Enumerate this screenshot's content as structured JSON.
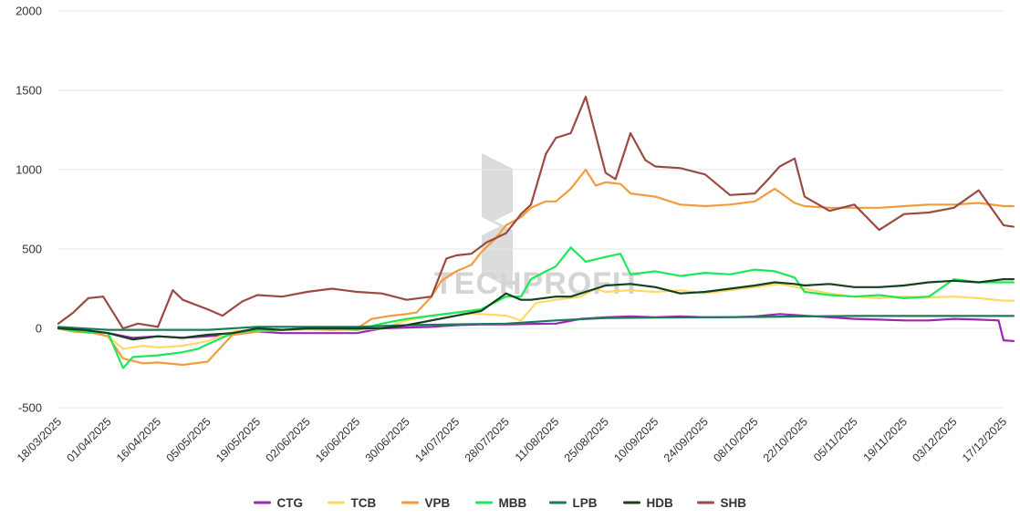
{
  "chart_data": {
    "type": "line",
    "title": "",
    "xlabel": "",
    "ylabel": "",
    "ylim": [
      -500,
      2000
    ],
    "yticks": [
      -500,
      0,
      500,
      1000,
      1500,
      2000
    ],
    "grid": true,
    "legend_position": "bottom-center",
    "watermark": "TECHPROFIT",
    "x": [
      "18/03/2025",
      "01/04/2025",
      "16/04/2025",
      "05/05/2025",
      "19/05/2025",
      "02/06/2025",
      "16/06/2025",
      "30/06/2025",
      "14/07/2025",
      "28/07/2025",
      "11/08/2025",
      "25/08/2025",
      "10/09/2025",
      "24/09/2025",
      "08/10/2025",
      "22/10/2025",
      "05/11/2025",
      "19/11/2025",
      "03/12/2025",
      "17/12/2025"
    ],
    "series": [
      {
        "name": "CTG",
        "color": "#9b27af",
        "values": [
          [
            0,
            0
          ],
          [
            0.5,
            -10
          ],
          [
            1,
            -30
          ],
          [
            1.5,
            -60
          ],
          [
            2,
            -50
          ],
          [
            2.5,
            -60
          ],
          [
            3,
            -50
          ],
          [
            3.5,
            -40
          ],
          [
            4,
            -20
          ],
          [
            4.5,
            -30
          ],
          [
            5,
            -30
          ],
          [
            5.5,
            -30
          ],
          [
            6,
            -30
          ],
          [
            6.5,
            0
          ],
          [
            7,
            5
          ],
          [
            7.5,
            10
          ],
          [
            8,
            20
          ],
          [
            8.5,
            25
          ],
          [
            9,
            25
          ],
          [
            9.5,
            28
          ],
          [
            10,
            30
          ],
          [
            10.5,
            60
          ],
          [
            11,
            70
          ],
          [
            11.5,
            75
          ],
          [
            12,
            70
          ],
          [
            12.5,
            75
          ],
          [
            13,
            70
          ],
          [
            13.5,
            70
          ],
          [
            14,
            75
          ],
          [
            14.5,
            90
          ],
          [
            15,
            80
          ],
          [
            15.5,
            70
          ],
          [
            16,
            60
          ],
          [
            16.5,
            55
          ],
          [
            17,
            50
          ],
          [
            17.5,
            50
          ],
          [
            18,
            60
          ],
          [
            18.5,
            55
          ],
          [
            18.9,
            50
          ],
          [
            19,
            -75
          ],
          [
            19.2,
            -80
          ]
        ]
      },
      {
        "name": "TCB",
        "color": "#ffd966",
        "values": [
          [
            0,
            0
          ],
          [
            0.5,
            -10
          ],
          [
            1,
            -50
          ],
          [
            1.3,
            -130
          ],
          [
            1.7,
            -110
          ],
          [
            2,
            -120
          ],
          [
            2.5,
            -110
          ],
          [
            3,
            -80
          ],
          [
            3.5,
            -20
          ],
          [
            4,
            -10
          ],
          [
            4.5,
            -10
          ],
          [
            5,
            -5
          ],
          [
            5.5,
            -10
          ],
          [
            6,
            -10
          ],
          [
            6.5,
            0
          ],
          [
            7,
            50
          ],
          [
            7.5,
            80
          ],
          [
            8,
            100
          ],
          [
            8.5,
            90
          ],
          [
            9,
            80
          ],
          [
            9.3,
            50
          ],
          [
            9.6,
            160
          ],
          [
            10,
            180
          ],
          [
            10.5,
            200
          ],
          [
            10.8,
            250
          ],
          [
            11,
            230
          ],
          [
            11.5,
            240
          ],
          [
            12,
            230
          ],
          [
            12.5,
            240
          ],
          [
            13,
            220
          ],
          [
            13.5,
            240
          ],
          [
            14,
            260
          ],
          [
            14.5,
            280
          ],
          [
            15,
            250
          ],
          [
            15.5,
            220
          ],
          [
            16,
            200
          ],
          [
            16.5,
            190
          ],
          [
            17,
            200
          ],
          [
            17.5,
            195
          ],
          [
            18,
            200
          ],
          [
            18.5,
            190
          ],
          [
            19,
            175
          ],
          [
            19.2,
            175
          ]
        ]
      },
      {
        "name": "VPB",
        "color": "#f39c3c",
        "values": [
          [
            0,
            0
          ],
          [
            0.3,
            -20
          ],
          [
            0.7,
            -30
          ],
          [
            1,
            -50
          ],
          [
            1.3,
            -190
          ],
          [
            1.7,
            -220
          ],
          [
            2,
            -215
          ],
          [
            2.5,
            -230
          ],
          [
            3,
            -210
          ],
          [
            3.5,
            -40
          ],
          [
            4,
            -20
          ],
          [
            4.5,
            -10
          ],
          [
            5,
            -5
          ],
          [
            5.5,
            -10
          ],
          [
            6,
            0
          ],
          [
            6.3,
            60
          ],
          [
            6.7,
            80
          ],
          [
            7,
            90
          ],
          [
            7.2,
            100
          ],
          [
            7.5,
            200
          ],
          [
            7.7,
            300
          ],
          [
            8,
            360
          ],
          [
            8.3,
            400
          ],
          [
            8.5,
            480
          ],
          [
            8.8,
            570
          ],
          [
            9,
            650
          ],
          [
            9.3,
            700
          ],
          [
            9.5,
            760
          ],
          [
            9.8,
            800
          ],
          [
            10,
            800
          ],
          [
            10.3,
            880
          ],
          [
            10.6,
            1000
          ],
          [
            10.8,
            900
          ],
          [
            11,
            920
          ],
          [
            11.3,
            910
          ],
          [
            11.5,
            850
          ],
          [
            12,
            830
          ],
          [
            12.5,
            780
          ],
          [
            13,
            770
          ],
          [
            13.5,
            780
          ],
          [
            14,
            800
          ],
          [
            14.4,
            880
          ],
          [
            14.8,
            790
          ],
          [
            15,
            770
          ],
          [
            15.5,
            760
          ],
          [
            16,
            760
          ],
          [
            16.5,
            760
          ],
          [
            17,
            770
          ],
          [
            17.5,
            780
          ],
          [
            18,
            780
          ],
          [
            18.5,
            790
          ],
          [
            19,
            770
          ],
          [
            19.2,
            770
          ]
        ]
      },
      {
        "name": "MBB",
        "color": "#1ee85a",
        "values": [
          [
            0,
            0
          ],
          [
            0.5,
            -20
          ],
          [
            1,
            -30
          ],
          [
            1.3,
            -250
          ],
          [
            1.5,
            -180
          ],
          [
            2,
            -170
          ],
          [
            2.5,
            -150
          ],
          [
            2.8,
            -130
          ],
          [
            3,
            -100
          ],
          [
            3.5,
            -30
          ],
          [
            4,
            -10
          ],
          [
            4.5,
            -10
          ],
          [
            5,
            0
          ],
          [
            5.5,
            0
          ],
          [
            6,
            -10
          ],
          [
            6.5,
            30
          ],
          [
            7,
            60
          ],
          [
            7.5,
            80
          ],
          [
            8,
            100
          ],
          [
            8.5,
            120
          ],
          [
            9,
            200
          ],
          [
            9.3,
            200
          ],
          [
            9.5,
            310
          ],
          [
            9.8,
            360
          ],
          [
            10,
            390
          ],
          [
            10.3,
            510
          ],
          [
            10.6,
            420
          ],
          [
            11,
            450
          ],
          [
            11.3,
            470
          ],
          [
            11.5,
            340
          ],
          [
            12,
            360
          ],
          [
            12.5,
            330
          ],
          [
            13,
            350
          ],
          [
            13.5,
            340
          ],
          [
            14,
            370
          ],
          [
            14.4,
            360
          ],
          [
            14.8,
            320
          ],
          [
            15,
            230
          ],
          [
            15.5,
            210
          ],
          [
            16,
            200
          ],
          [
            16.5,
            210
          ],
          [
            17,
            190
          ],
          [
            17.5,
            200
          ],
          [
            18,
            310
          ],
          [
            18.5,
            290
          ],
          [
            19,
            290
          ],
          [
            19.2,
            290
          ]
        ]
      },
      {
        "name": "LPB",
        "color": "#1a7a5e",
        "values": [
          [
            0,
            10
          ],
          [
            1,
            -10
          ],
          [
            2,
            -10
          ],
          [
            3,
            -10
          ],
          [
            4,
            10
          ],
          [
            5,
            10
          ],
          [
            6,
            10
          ],
          [
            7,
            20
          ],
          [
            8,
            25
          ],
          [
            9,
            30
          ],
          [
            10,
            50
          ],
          [
            11,
            65
          ],
          [
            12,
            68
          ],
          [
            13,
            70
          ],
          [
            14,
            72
          ],
          [
            15,
            75
          ],
          [
            16,
            78
          ],
          [
            17,
            78
          ],
          [
            18,
            78
          ],
          [
            19,
            78
          ],
          [
            19.2,
            78
          ]
        ]
      },
      {
        "name": "HDB",
        "color": "#13401f",
        "values": [
          [
            0,
            0
          ],
          [
            0.5,
            -10
          ],
          [
            1,
            -30
          ],
          [
            1.5,
            -70
          ],
          [
            2,
            -50
          ],
          [
            2.5,
            -60
          ],
          [
            3,
            -40
          ],
          [
            3.5,
            -30
          ],
          [
            4,
            0
          ],
          [
            4.5,
            -10
          ],
          [
            5,
            0
          ],
          [
            5.5,
            0
          ],
          [
            6,
            0
          ],
          [
            6.5,
            0
          ],
          [
            7,
            20
          ],
          [
            7.5,
            50
          ],
          [
            8,
            80
          ],
          [
            8.5,
            110
          ],
          [
            9,
            220
          ],
          [
            9.3,
            180
          ],
          [
            9.5,
            180
          ],
          [
            10,
            200
          ],
          [
            10.3,
            200
          ],
          [
            10.8,
            250
          ],
          [
            11,
            270
          ],
          [
            11.5,
            280
          ],
          [
            12,
            260
          ],
          [
            12.5,
            220
          ],
          [
            13,
            230
          ],
          [
            13.5,
            250
          ],
          [
            14,
            270
          ],
          [
            14.4,
            290
          ],
          [
            14.8,
            280
          ],
          [
            15,
            270
          ],
          [
            15.5,
            280
          ],
          [
            16,
            260
          ],
          [
            16.5,
            260
          ],
          [
            17,
            270
          ],
          [
            17.5,
            290
          ],
          [
            18,
            300
          ],
          [
            18.5,
            290
          ],
          [
            19,
            310
          ],
          [
            19.2,
            310
          ]
        ]
      },
      {
        "name": "SHB",
        "color": "#9b4a42",
        "values": [
          [
            0,
            30
          ],
          [
            0.3,
            100
          ],
          [
            0.6,
            190
          ],
          [
            0.9,
            200
          ],
          [
            1.1,
            100
          ],
          [
            1.3,
            0
          ],
          [
            1.6,
            30
          ],
          [
            2,
            10
          ],
          [
            2.3,
            240
          ],
          [
            2.5,
            180
          ],
          [
            3,
            120
          ],
          [
            3.3,
            80
          ],
          [
            3.7,
            170
          ],
          [
            4,
            210
          ],
          [
            4.5,
            200
          ],
          [
            5,
            230
          ],
          [
            5.5,
            250
          ],
          [
            6,
            230
          ],
          [
            6.5,
            220
          ],
          [
            7,
            180
          ],
          [
            7.5,
            200
          ],
          [
            7.8,
            440
          ],
          [
            8,
            460
          ],
          [
            8.3,
            470
          ],
          [
            8.6,
            540
          ],
          [
            9,
            600
          ],
          [
            9.3,
            720
          ],
          [
            9.5,
            780
          ],
          [
            9.8,
            1100
          ],
          [
            10,
            1200
          ],
          [
            10.3,
            1230
          ],
          [
            10.6,
            1460
          ],
          [
            10.8,
            1220
          ],
          [
            11,
            980
          ],
          [
            11.2,
            940
          ],
          [
            11.5,
            1230
          ],
          [
            11.8,
            1060
          ],
          [
            12,
            1020
          ],
          [
            12.5,
            1010
          ],
          [
            13,
            970
          ],
          [
            13.5,
            840
          ],
          [
            14,
            850
          ],
          [
            14.3,
            950
          ],
          [
            14.5,
            1020
          ],
          [
            14.8,
            1070
          ],
          [
            15,
            830
          ],
          [
            15.5,
            740
          ],
          [
            16,
            780
          ],
          [
            16.5,
            620
          ],
          [
            17,
            720
          ],
          [
            17.5,
            730
          ],
          [
            18,
            760
          ],
          [
            18.5,
            870
          ],
          [
            19,
            650
          ],
          [
            19.2,
            640
          ]
        ]
      }
    ]
  }
}
